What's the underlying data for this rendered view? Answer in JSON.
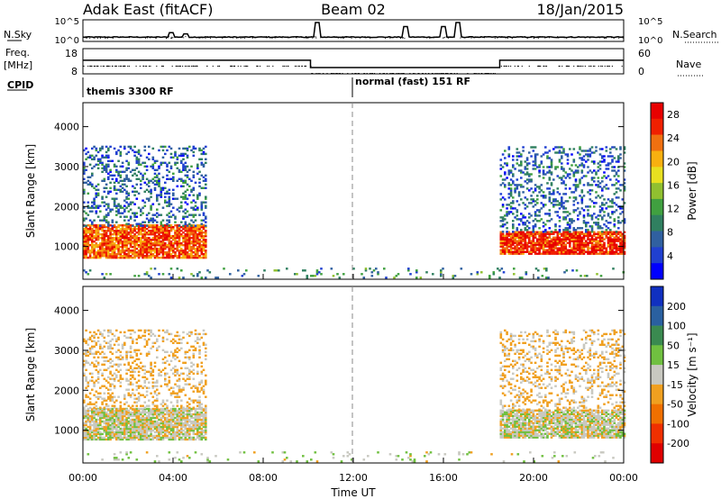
{
  "header": {
    "title_left": "Adak East (fitACF)",
    "title_center": "Beam 02",
    "title_right": "18/Jan/2015"
  },
  "summary": {
    "nsky_label": "N.Sky",
    "nsearch_label": "N.Search",
    "freq_label": "Freq.",
    "freq_unit": "[MHz]",
    "nave_label": "Nave",
    "cpid_label": "CPID",
    "nsky_ticks": [
      "10^5",
      "10^0"
    ],
    "nsearch_ticks": [
      "10^5",
      "10^0"
    ],
    "freq_ticks": [
      "18",
      "8"
    ],
    "nave_ticks": [
      "60",
      "0"
    ],
    "cpid_segments": [
      {
        "label": "themis 3300 RF",
        "start": 0,
        "end": 12
      },
      {
        "label": "normal (fast) 151 RF",
        "start": 12,
        "end": 24
      }
    ],
    "freq_series": [
      {
        "start": 0,
        "end": 10.1,
        "value": 13.4
      },
      {
        "start": 10.1,
        "end": 18.5,
        "value": 10.5
      },
      {
        "start": 18.5,
        "end": 24,
        "value": 13.4
      }
    ],
    "noise_spikes": [
      {
        "time": 10.4,
        "level": 4.0
      },
      {
        "time": 14.3,
        "level": 3.0
      },
      {
        "time": 16.0,
        "level": 3.0
      },
      {
        "time": 16.6,
        "level": 4.0
      },
      {
        "time": 3.9,
        "level": 1.5
      },
      {
        "time": 4.6,
        "level": 1.2
      }
    ]
  },
  "chart_data": [
    {
      "type": "heatmap",
      "ylabel": "Slant Range [km]",
      "xlabel": "Time UT",
      "x_ticks": [
        "00:00",
        "04:00",
        "08:00",
        "12:00",
        "16:00",
        "20:00",
        "00:00"
      ],
      "x_range_hours": [
        0,
        24
      ],
      "y_ticks": [
        1000,
        2000,
        3000,
        4000
      ],
      "ylim": [
        180,
        4600
      ],
      "colorbar": {
        "label": "Power [dB]",
        "ticks": [
          4,
          8,
          12,
          16,
          20,
          24,
          28
        ],
        "range": [
          0,
          30
        ],
        "colors": [
          "#0000ff",
          "#2040d0",
          "#3060a0",
          "#308060",
          "#40a040",
          "#90c030",
          "#e8e020",
          "#f8b010",
          "#f07010",
          "#f02000",
          "#e80000"
        ]
      },
      "regions": [
        {
          "t0": 0.0,
          "t1": 5.4,
          "r0": 700,
          "r1": 1550,
          "value": 24
        },
        {
          "t0": 0.0,
          "t1": 5.4,
          "r0": 1500,
          "r1": 3500,
          "value": 7
        },
        {
          "t0": 18.5,
          "t1": 24.0,
          "r0": 800,
          "r1": 1350,
          "value": 26
        },
        {
          "t0": 18.5,
          "t1": 24.0,
          "r0": 1350,
          "r1": 3500,
          "value": 7
        },
        {
          "t0": 0.0,
          "t1": 24.0,
          "r0": 200,
          "r1": 450,
          "value": 10
        }
      ]
    },
    {
      "type": "heatmap",
      "ylabel": "Slant Range [km]",
      "xlabel": "Time UT",
      "x_ticks": [
        "00:00",
        "04:00",
        "08:00",
        "12:00",
        "16:00",
        "20:00",
        "00:00"
      ],
      "x_range_hours": [
        0,
        24
      ],
      "y_ticks": [
        1000,
        2000,
        3000,
        4000
      ],
      "ylim": [
        180,
        4600
      ],
      "colorbar": {
        "label": "Velocity [m s⁻¹]",
        "ticks": [
          200,
          100,
          50,
          15,
          -15,
          -50,
          -100,
          -200
        ],
        "colors": [
          "#1030c0",
          "#2a60a0",
          "#3a8a50",
          "#70c040",
          "#c8c8c0",
          "#f0a020",
          "#f07000",
          "#f03000",
          "#e00000"
        ]
      },
      "regions": [
        {
          "t0": 0.0,
          "t1": 5.4,
          "r0": 750,
          "r1": 1550,
          "value": 0
        },
        {
          "t0": 0.0,
          "t1": 5.4,
          "r0": 1500,
          "r1": 3500,
          "value": -20
        },
        {
          "t0": 18.5,
          "t1": 24.0,
          "r0": 800,
          "r1": 1500,
          "value": 0
        },
        {
          "t0": 18.5,
          "t1": 24.0,
          "r0": 1500,
          "r1": 3500,
          "value": -20
        },
        {
          "t0": 0.0,
          "t1": 24.0,
          "r0": 200,
          "r1": 450,
          "value": 10
        }
      ]
    }
  ]
}
